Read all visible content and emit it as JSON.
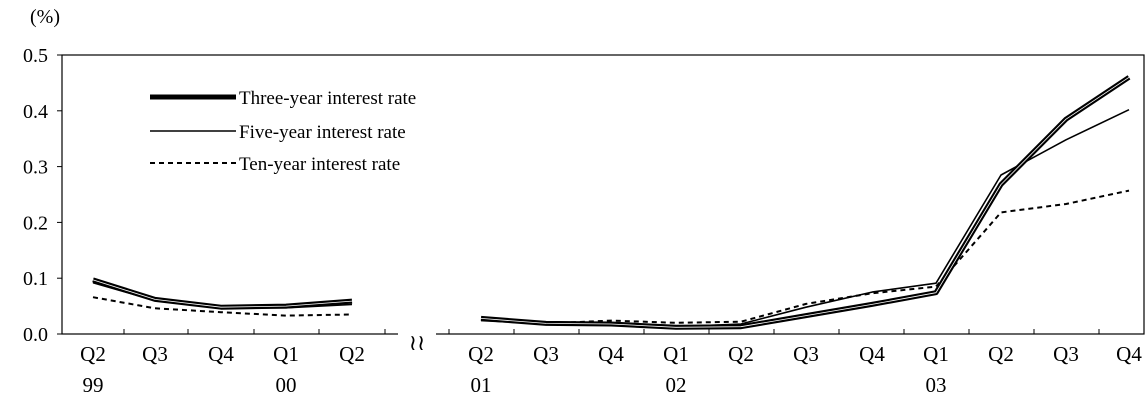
{
  "chart_data": {
    "type": "line",
    "ylabel": "(%)",
    "ylim": [
      0,
      0.5
    ],
    "yticks": [
      "0.0",
      "0.1",
      "0.2",
      "0.3",
      "0.4",
      "0.5"
    ],
    "categories": [
      "Q2",
      "Q3",
      "Q4",
      "Q1",
      "Q2",
      "Q2",
      "Q3",
      "Q4",
      "Q1",
      "Q2",
      "Q3",
      "Q4",
      "Q1",
      "Q2",
      "Q3",
      "Q4"
    ],
    "year_labels": [
      {
        "label": "99",
        "index": 0
      },
      {
        "label": "00",
        "index": 3
      },
      {
        "label": "01",
        "index": 5
      },
      {
        "label": "02",
        "index": 8
      },
      {
        "label": "03",
        "index": 12
      }
    ],
    "axis_break": "≀≀",
    "segments": [
      [
        0,
        4
      ],
      [
        5,
        15
      ]
    ],
    "legend_position": "top-left",
    "series": [
      {
        "name": "Three-year interest rate",
        "style": "thick",
        "values": [
          0.097,
          0.062,
          0.048,
          0.05,
          0.059,
          0.028,
          0.019,
          0.018,
          0.012,
          0.013,
          0.033,
          0.053,
          0.074,
          0.268,
          0.385,
          0.46
        ]
      },
      {
        "name": "Five-year interest rate",
        "style": "thin",
        "values": [
          0.092,
          0.06,
          0.047,
          0.047,
          0.053,
          0.024,
          0.018,
          0.02,
          0.013,
          0.018,
          0.048,
          0.075,
          0.091,
          0.285,
          0.348,
          0.402
        ]
      },
      {
        "name": "Ten-year interest rate",
        "style": "dashed",
        "values": [
          0.066,
          0.046,
          0.039,
          0.033,
          0.035,
          0.026,
          0.019,
          0.024,
          0.02,
          0.022,
          0.054,
          0.073,
          0.085,
          0.218,
          0.233,
          0.257
        ]
      }
    ]
  }
}
